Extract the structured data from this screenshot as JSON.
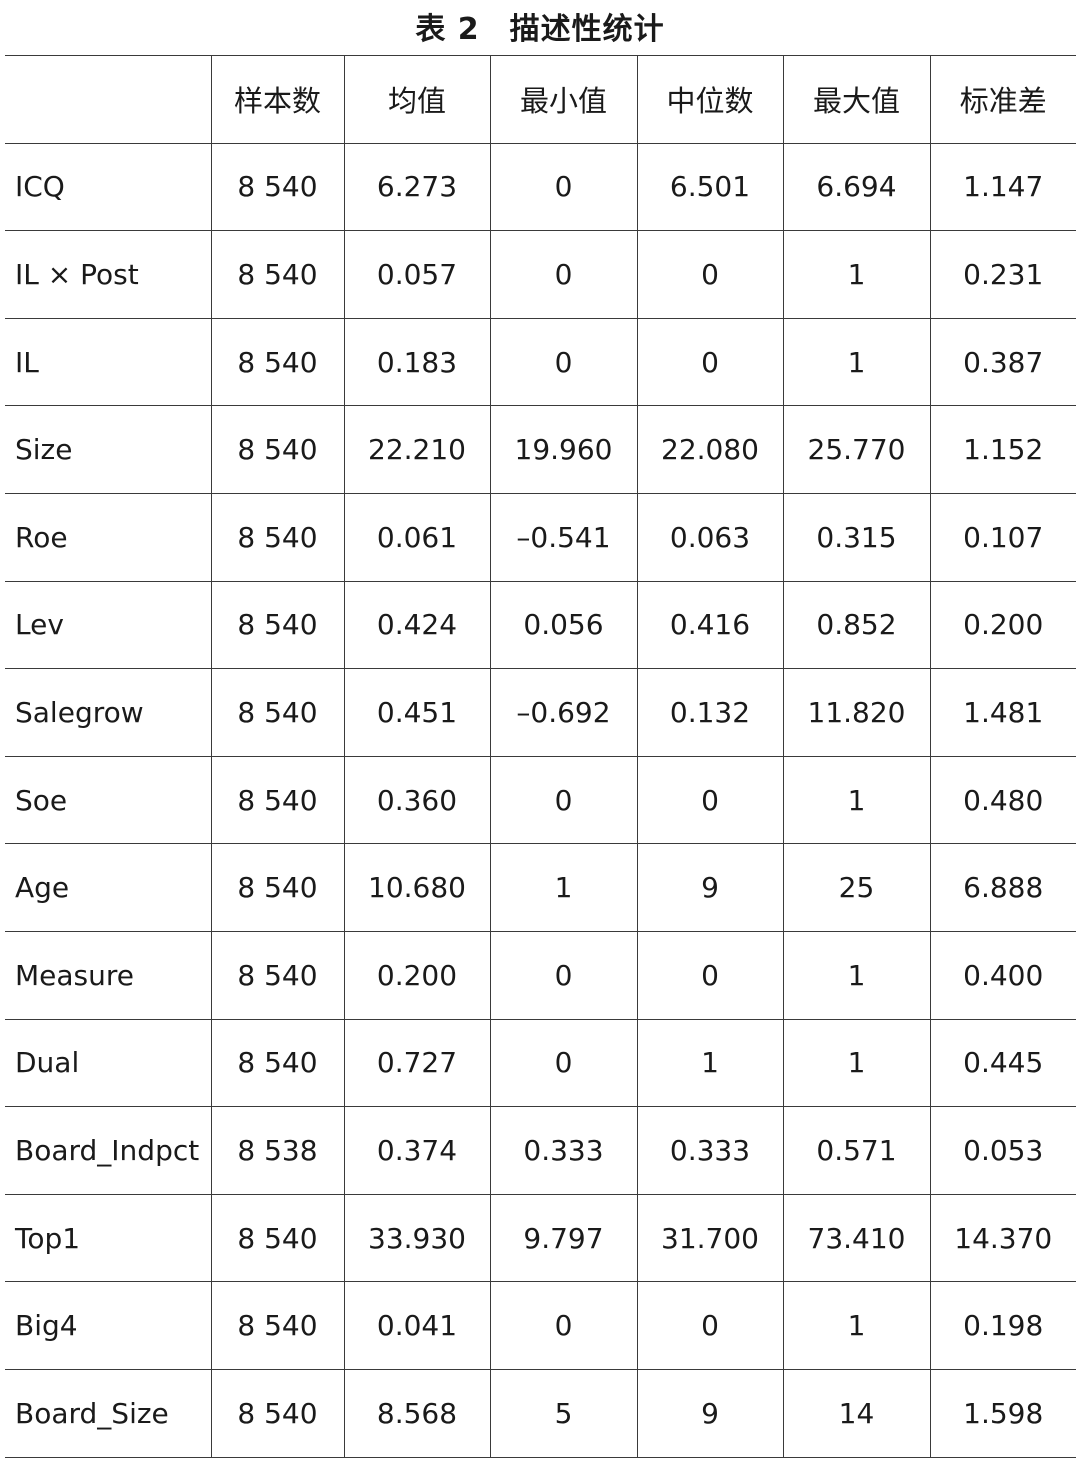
{
  "caption": {
    "number": "表 2",
    "title": "描述性统计"
  },
  "table": {
    "headers": [
      "",
      "样本数",
      "均值",
      "最小值",
      "中位数",
      "最大值",
      "标准差"
    ],
    "rows": [
      [
        "ICQ",
        "8 540",
        "6.273",
        "0",
        "6.501",
        "6.694",
        "1.147"
      ],
      [
        "IL × Post",
        "8 540",
        "0.057",
        "0",
        "0",
        "1",
        "0.231"
      ],
      [
        "IL",
        "8 540",
        "0.183",
        "0",
        "0",
        "1",
        "0.387"
      ],
      [
        "Size",
        "8 540",
        "22.210",
        "19.960",
        "22.080",
        "25.770",
        "1.152"
      ],
      [
        "Roe",
        "8 540",
        "0.061",
        "–0.541",
        "0.063",
        "0.315",
        "0.107"
      ],
      [
        "Lev",
        "8 540",
        "0.424",
        "0.056",
        "0.416",
        "0.852",
        "0.200"
      ],
      [
        "Salegrow",
        "8 540",
        "0.451",
        "–0.692",
        "0.132",
        "11.820",
        "1.481"
      ],
      [
        "Soe",
        "8 540",
        "0.360",
        "0",
        "0",
        "1",
        "0.480"
      ],
      [
        "Age",
        "8 540",
        "10.680",
        "1",
        "9",
        "25",
        "6.888"
      ],
      [
        "Measure",
        "8 540",
        "0.200",
        "0",
        "0",
        "1",
        "0.400"
      ],
      [
        "Dual",
        "8 540",
        "0.727",
        "0",
        "1",
        "1",
        "0.445"
      ],
      [
        "Board_Indpct",
        "8 538",
        "0.374",
        "0.333",
        "0.333",
        "0.571",
        "0.053"
      ],
      [
        "Top1",
        "8 540",
        "33.930",
        "9.797",
        "31.700",
        "73.410",
        "14.370"
      ],
      [
        "Big4",
        "8 540",
        "0.041",
        "0",
        "0",
        "1",
        "0.198"
      ],
      [
        "Board_Size",
        "8 540",
        "8.568",
        "5",
        "9",
        "14",
        "1.598"
      ]
    ]
  }
}
